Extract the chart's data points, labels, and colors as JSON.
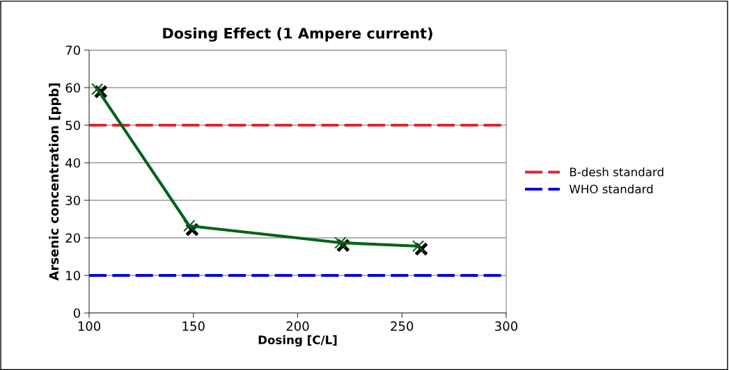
{
  "chart_data": {
    "type": "line",
    "title": "Dosing Effect (1 Ampere current)",
    "xlabel": "Dosing [C/L]",
    "ylabel": "Arsenic concentration [ppb]",
    "xlim": [
      100,
      300
    ],
    "xticks": [
      100,
      150,
      200,
      250,
      300
    ],
    "ylim": [
      0,
      70
    ],
    "yticks": [
      0,
      10,
      20,
      30,
      40,
      50,
      60,
      70
    ],
    "grid": "y",
    "legend": "right",
    "series": [
      {
        "type": "scatter",
        "color": "#000000",
        "marker": "cross",
        "x": [
          105.6,
          149.4,
          221.8,
          259.3
        ],
        "values": [
          58.9,
          22.2,
          18.0,
          17.0
        ]
      },
      {
        "color": "#006414",
        "marker": "cross",
        "line_style": "solid",
        "x": [
          103.9,
          148.0,
          220.5,
          257.8
        ],
        "values": [
          59.6,
          23.2,
          18.7,
          17.8
        ]
      }
    ],
    "ref_lines": [
      {
        "axis": "y",
        "value": 50,
        "label": "B-desh standard",
        "color": "#e0262e",
        "line_style": "dashed"
      },
      {
        "axis": "y",
        "value": 10,
        "label": "WHO standard",
        "color": "#0000e0",
        "line_style": "dashed"
      }
    ]
  }
}
